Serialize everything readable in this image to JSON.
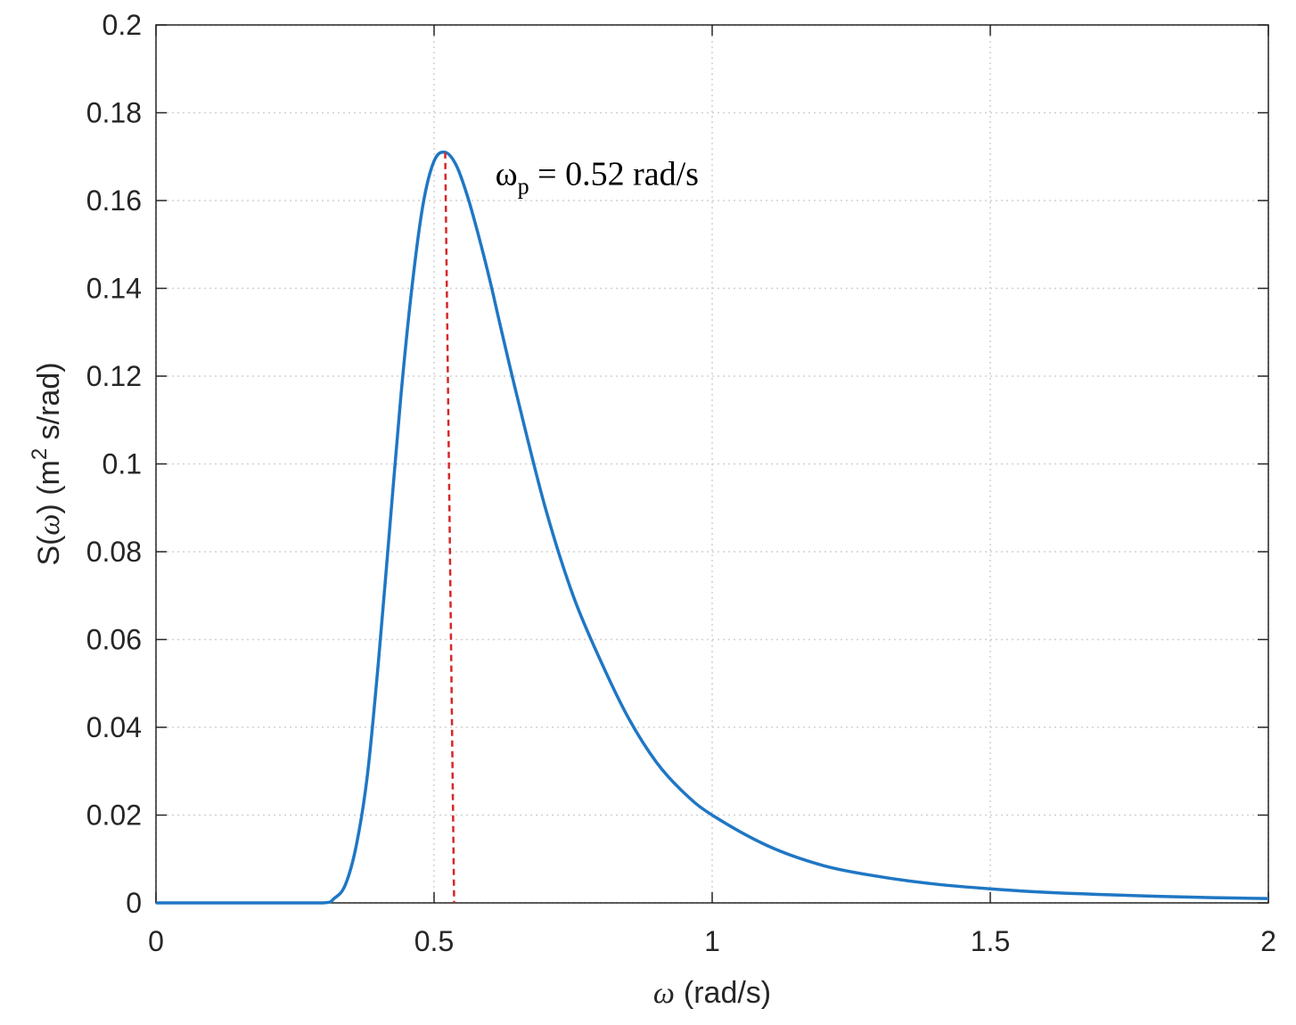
{
  "chart_data": {
    "type": "line",
    "title": "",
    "xlabel_main": "ω",
    "xlabel_unit": "(rad/s)",
    "ylabel_prefix": "S(",
    "ylabel_omega": "ω",
    "ylabel_mid": ") (m",
    "ylabel_sup": "2",
    "ylabel_suffix": " s/rad)",
    "xlim": [
      0,
      2
    ],
    "ylim": [
      0,
      0.2
    ],
    "xticks": [
      0,
      0.5,
      1,
      1.5,
      2
    ],
    "xtick_labels": [
      "0",
      "0.5",
      "1",
      "1.5",
      "2"
    ],
    "yticks": [
      0,
      0.02,
      0.04,
      0.06,
      0.08,
      0.1,
      0.12,
      0.14,
      0.16,
      0.18,
      0.2
    ],
    "ytick_labels": [
      "0",
      "0.02",
      "0.04",
      "0.06",
      "0.08",
      "0.1",
      "0.12",
      "0.14",
      "0.16",
      "0.18",
      "0.2"
    ],
    "grid": true,
    "series": [
      {
        "color": "#1f77c4",
        "x": [
          0,
          0.1,
          0.2,
          0.3,
          0.32,
          0.34,
          0.36,
          0.38,
          0.4,
          0.42,
          0.44,
          0.46,
          0.48,
          0.5,
          0.52,
          0.54,
          0.56,
          0.58,
          0.6,
          0.62,
          0.65,
          0.7,
          0.75,
          0.8,
          0.85,
          0.9,
          0.95,
          1.0,
          1.1,
          1.2,
          1.3,
          1.4,
          1.5,
          1.6,
          1.7,
          1.8,
          1.9,
          2.0
        ],
        "y": [
          0,
          0,
          0,
          0,
          0.001,
          0.004,
          0.013,
          0.029,
          0.055,
          0.085,
          0.115,
          0.14,
          0.159,
          0.169,
          0.171,
          0.168,
          0.161,
          0.152,
          0.142,
          0.131,
          0.115,
          0.09,
          0.07,
          0.055,
          0.042,
          0.032,
          0.025,
          0.02,
          0.013,
          0.0085,
          0.006,
          0.0043,
          0.0032,
          0.0024,
          0.0019,
          0.0015,
          0.0012,
          0.001
        ]
      }
    ],
    "marker_line": {
      "x": 0.52,
      "color": "#d62728",
      "style": "dashed"
    },
    "annotation": {
      "omega": "ω",
      "subscript": "p",
      "rest": " = 0.52 rad/s",
      "x": 0.61,
      "y": 0.168
    }
  }
}
